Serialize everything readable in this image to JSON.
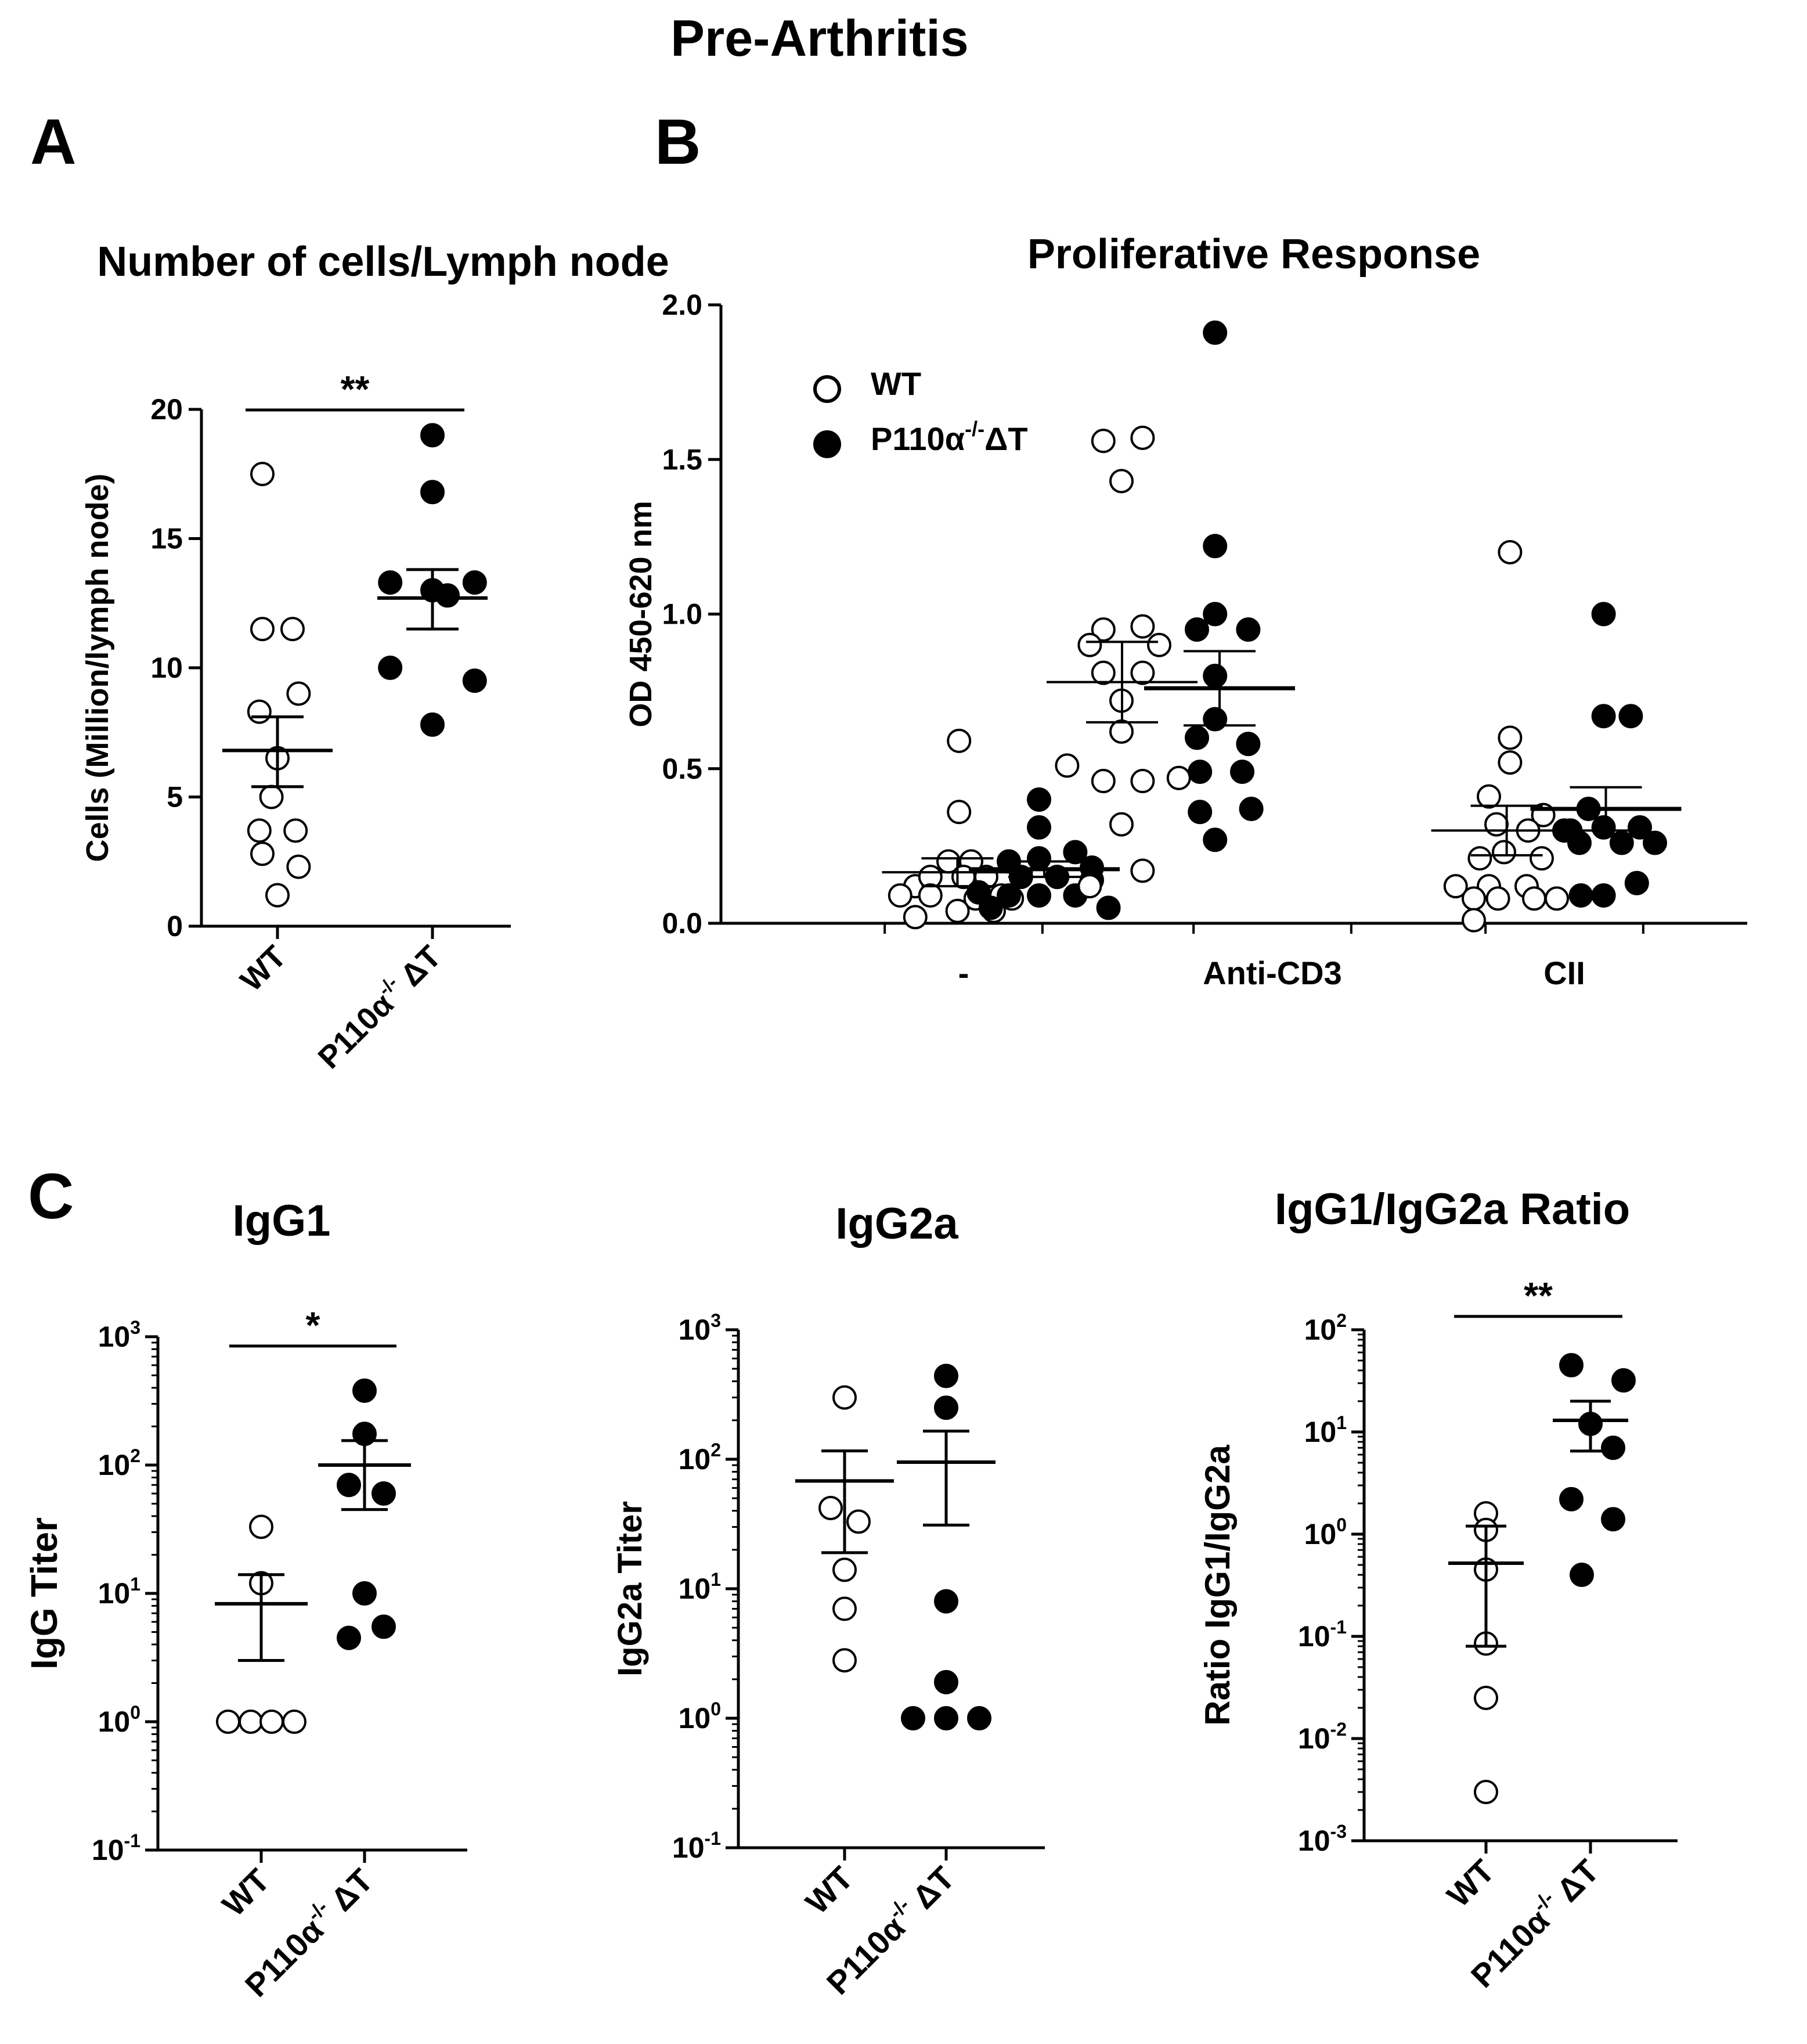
{
  "figure_title": "Pre-Arthritis",
  "panel_labels": {
    "a": "A",
    "b": "B",
    "c": "C"
  },
  "colors": {
    "wt_fill": "#ffffff",
    "ko_fill": "#000000",
    "stroke": "#000000"
  },
  "chart_data": [
    {
      "id": "A",
      "type": "scatter",
      "scale": "linear",
      "title": "Number of cells/Lymph node",
      "ylabel": "Cells (Million/lymph node)",
      "ylim": [
        0,
        20
      ],
      "yticks": [
        0,
        5,
        10,
        15,
        20
      ],
      "ytick_labels": [
        "0",
        "5",
        "10",
        "15",
        "20"
      ],
      "categories": [
        "WT",
        "P110α-/- ΔT"
      ],
      "significance": "**",
      "series": [
        {
          "name": "WT",
          "fill": "open",
          "points": [
            [
              -0.1,
              17.5
            ],
            [
              -0.1,
              11.5
            ],
            [
              0.1,
              11.5
            ],
            [
              0.14,
              9
            ],
            [
              -0.12,
              8.3
            ],
            [
              0,
              6.5
            ],
            [
              -0.04,
              5
            ],
            [
              -0.12,
              3.7
            ],
            [
              0.12,
              3.7
            ],
            [
              -0.1,
              2.8
            ],
            [
              0.14,
              2.3
            ],
            [
              0,
              1.2
            ]
          ],
          "mean": 6.8,
          "sem_low": 5.4,
          "sem_high": 8.1
        },
        {
          "name": "P110α-/- ΔT",
          "fill": "filled",
          "points": [
            [
              0,
              19
            ],
            [
              0,
              16.8
            ],
            [
              0,
              13
            ],
            [
              -0.28,
              13.3
            ],
            [
              0.28,
              13.3
            ],
            [
              0.1,
              12.8
            ],
            [
              -0.28,
              10
            ],
            [
              0.28,
              9.5
            ],
            [
              0,
              7.8
            ]
          ],
          "mean": 12.7,
          "sem_low": 11.5,
          "sem_high": 13.8
        }
      ]
    },
    {
      "id": "B",
      "type": "scatter",
      "scale": "linear",
      "title": "Proliferative Response",
      "ylabel": "OD 450-620 nm",
      "ylim": [
        0,
        2.0
      ],
      "yticks": [
        0,
        0.5,
        1.0,
        1.5,
        2.0
      ],
      "ytick_labels": [
        "0.0",
        "0.5",
        "1.0",
        "1.5",
        "2.0"
      ],
      "categories": [
        "-",
        "Anti-CD3",
        "CII"
      ],
      "legend": [
        {
          "label_base": "WT",
          "label_sup": "",
          "label_suffix": "",
          "fill": "open"
        },
        {
          "label_base": "P110α",
          "label_sup": "-/-",
          "label_suffix": "ΔT",
          "fill": "filled"
        }
      ],
      "groups": [
        {
          "category": "-",
          "wt": {
            "points": [
              [
                -0.03,
                0.59
              ],
              [
                -0.03,
                0.36
              ],
              [
                -0.32,
                0.12
              ],
              [
                0.32,
                0.08
              ],
              [
                -0.1,
                0.2
              ],
              [
                0.05,
                0.2
              ],
              [
                -0.22,
                0.15
              ],
              [
                0,
                0.15
              ],
              [
                0.15,
                0.15
              ],
              [
                -0.42,
                0.09
              ],
              [
                -0.22,
                0.09
              ],
              [
                0.08,
                0.08
              ],
              [
                0.25,
                0.09
              ],
              [
                -0.32,
                0.02
              ],
              [
                -0.04,
                0.04
              ],
              [
                0.2,
                0.04
              ]
            ],
            "mean": 0.165,
            "sem_low": 0.12,
            "sem_high": 0.21
          },
          "ko": {
            "points": [
              [
                0.5,
                0.4
              ],
              [
                0.5,
                0.31
              ],
              [
                0.5,
                0.21
              ],
              [
                0.74,
                0.23
              ],
              [
                0.85,
                0.18
              ],
              [
                0.3,
                0.2
              ],
              [
                0.38,
                0.15
              ],
              [
                0.62,
                0.15
              ],
              [
                0.85,
                0.14
              ],
              [
                0.1,
                0.1
              ],
              [
                0.3,
                0.09
              ],
              [
                0.5,
                0.09
              ],
              [
                0.74,
                0.09
              ],
              [
                0.18,
                0.05
              ],
              [
                0.96,
                0.05
              ]
            ],
            "mean": 0.175,
            "sem_low": 0.15,
            "sem_high": 0.2
          }
        },
        {
          "category": "Anti-CD3",
          "wt": {
            "points": [
              [
                -1.12,
                1.56
              ],
              [
                -0.86,
                1.57
              ],
              [
                -1.0,
                1.43
              ],
              [
                -1.12,
                0.95
              ],
              [
                -0.86,
                0.96
              ],
              [
                -1.21,
                0.9
              ],
              [
                -0.75,
                0.9
              ],
              [
                -1.12,
                0.81
              ],
              [
                -0.86,
                0.81
              ],
              [
                -1.0,
                0.72
              ],
              [
                -1.0,
                0.62
              ],
              [
                -1.36,
                0.51
              ],
              [
                -1.12,
                0.46
              ],
              [
                -0.86,
                0.46
              ],
              [
                -0.62,
                0.47
              ],
              [
                -1.0,
                0.32
              ],
              [
                -1.21,
                0.12
              ],
              [
                -0.86,
                0.17
              ]
            ],
            "mean": 0.78,
            "sem_low": 0.65,
            "sem_high": 0.91
          },
          "ko": {
            "points": [
              [
                -0.38,
                1.91
              ],
              [
                -0.38,
                1.22
              ],
              [
                -0.38,
                1.0
              ],
              [
                -0.16,
                0.95
              ],
              [
                -0.5,
                0.95
              ],
              [
                -0.38,
                0.8
              ],
              [
                -0.38,
                0.66
              ],
              [
                -0.48,
                0.49
              ],
              [
                -0.2,
                0.49
              ],
              [
                -0.16,
                0.58
              ],
              [
                -0.5,
                0.6
              ],
              [
                -0.14,
                0.37
              ],
              [
                -0.48,
                0.36
              ],
              [
                -0.38,
                0.27
              ]
            ],
            "mean": 0.76,
            "sem_low": 0.64,
            "sem_high": 0.88
          }
        },
        {
          "category": "CII",
          "wt": {
            "points": [
              [
                -0.36,
                1.2
              ],
              [
                -0.36,
                0.6
              ],
              [
                -0.36,
                0.52
              ],
              [
                -0.5,
                0.41
              ],
              [
                -0.14,
                0.35
              ],
              [
                -0.45,
                0.32
              ],
              [
                -0.24,
                0.3
              ],
              [
                -0.4,
                0.23
              ],
              [
                -0.56,
                0.21
              ],
              [
                -0.15,
                0.21
              ],
              [
                -0.72,
                0.12
              ],
              [
                -0.5,
                0.12
              ],
              [
                -0.25,
                0.12
              ],
              [
                -0.6,
                0.08
              ],
              [
                -0.44,
                0.08
              ],
              [
                -0.2,
                0.08
              ],
              [
                -0.05,
                0.08
              ],
              [
                -0.6,
                0.01
              ]
            ],
            "mean": 0.3,
            "sem_low": 0.22,
            "sem_high": 0.38
          },
          "ko": {
            "points": [
              [
                0.26,
                1.0
              ],
              [
                0.26,
                0.67
              ],
              [
                0.44,
                0.67
              ],
              [
                0.16,
                0.37
              ],
              [
                0.04,
                0.3
              ],
              [
                0.26,
                0.31
              ],
              [
                0.5,
                0.31
              ],
              [
                0.6,
                0.26
              ],
              [
                0.1,
                0.26
              ],
              [
                0.38,
                0.26
              ],
              [
                0.11,
                0.09
              ],
              [
                0.26,
                0.09
              ],
              [
                0.48,
                0.13
              ],
              [
                0.0,
                0.3
              ]
            ],
            "mean": 0.37,
            "sem_low": 0.3,
            "sem_high": 0.44
          }
        }
      ]
    },
    {
      "id": "C1",
      "type": "scatter",
      "scale": "log",
      "title": "IgG1",
      "ylabel": "IgG Titer",
      "ylim_exp": [
        -1,
        3
      ],
      "ytick_exps": [
        -1,
        0,
        1,
        2,
        3
      ],
      "ytick_base": "10",
      "ytick_sups": [
        "-1",
        "0",
        "1",
        "2",
        "3"
      ],
      "categories": [
        "WT",
        "P110α-/- ΔT"
      ],
      "significance": "*",
      "series": [
        {
          "name": "WT",
          "fill": "open",
          "points": [
            [
              0,
              33
            ],
            [
              0,
              12
            ],
            [
              -0.38,
              1
            ],
            [
              -0.12,
              1
            ],
            [
              0.12,
              1
            ],
            [
              0.38,
              1
            ]
          ],
          "mean": 8.3,
          "sem_low": 3.0,
          "sem_high": 14
        },
        {
          "name": "P110α-/- ΔT",
          "fill": "filled",
          "points": [
            [
              0,
              380
            ],
            [
              0,
              175
            ],
            [
              -0.18,
              70
            ],
            [
              0.22,
              60
            ],
            [
              0,
              10
            ],
            [
              -0.18,
              4.5
            ],
            [
              0.22,
              5.5
            ]
          ],
          "mean": 100,
          "sem_low": 45,
          "sem_high": 155
        }
      ]
    },
    {
      "id": "C2",
      "type": "scatter",
      "scale": "log",
      "title": "IgG2a",
      "ylabel": "IgG2a Titer",
      "ylim_exp": [
        -1,
        3
      ],
      "ytick_exps": [
        -1,
        0,
        1,
        2,
        3
      ],
      "ytick_base": "10",
      "ytick_sups": [
        "-1",
        "0",
        "1",
        "2",
        "3"
      ],
      "categories": [
        "WT",
        "P110α-/- ΔT"
      ],
      "series": [
        {
          "name": "WT",
          "fill": "open",
          "points": [
            [
              0,
              300
            ],
            [
              -0.16,
              42
            ],
            [
              0.16,
              33
            ],
            [
              0,
              14
            ],
            [
              0,
              7
            ],
            [
              0,
              2.8
            ]
          ],
          "mean": 68,
          "sem_low": 19,
          "sem_high": 116
        },
        {
          "name": "P110α-/- ΔT",
          "fill": "filled",
          "points": [
            [
              0,
              440
            ],
            [
              0,
              250
            ],
            [
              0,
              8
            ],
            [
              0,
              1.9
            ],
            [
              -0.38,
              1
            ],
            [
              0,
              1
            ],
            [
              0.38,
              1
            ]
          ],
          "mean": 95,
          "sem_low": 31,
          "sem_high": 165
        }
      ]
    },
    {
      "id": "C3",
      "type": "scatter",
      "scale": "log",
      "title": "IgG1/IgG2a Ratio",
      "ylabel": "Ratio IgG1/IgG2a",
      "ylim_exp": [
        -3,
        2
      ],
      "ytick_exps": [
        -3,
        -2,
        -1,
        0,
        1,
        2
      ],
      "ytick_base": "10",
      "ytick_sups": [
        "-3",
        "-2",
        "-1",
        "0",
        "1",
        "2"
      ],
      "categories": [
        "WT",
        "P110α-/- ΔT"
      ],
      "significance": "**",
      "series": [
        {
          "name": "WT",
          "fill": "open",
          "points": [
            [
              0,
              1.6
            ],
            [
              0,
              1.1
            ],
            [
              0,
              0.45
            ],
            [
              0,
              0.085
            ],
            [
              0,
              0.025
            ],
            [
              0,
              0.003
            ]
          ],
          "mean": 0.52,
          "sem_low": 0.08,
          "sem_high": 1.2
        },
        {
          "name": "P110α-/- ΔT",
          "fill": "filled",
          "points": [
            [
              -0.22,
              45
            ],
            [
              0.38,
              32
            ],
            [
              0,
              12
            ],
            [
              0.26,
              7
            ],
            [
              -0.22,
              2.2
            ],
            [
              0.26,
              1.4
            ],
            [
              -0.1,
              0.4
            ]
          ],
          "mean": 13,
          "sem_low": 6.5,
          "sem_high": 20
        }
      ]
    }
  ]
}
